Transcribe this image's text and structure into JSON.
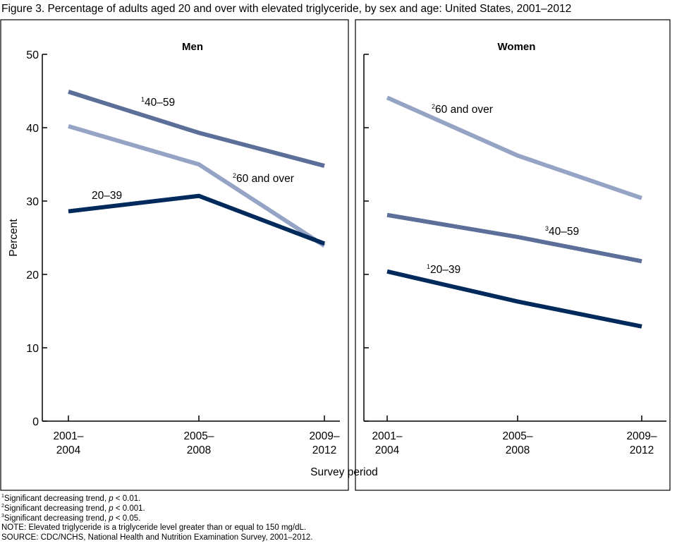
{
  "title": "Figure 3. Percentage of adults aged 20 and over with elevated triglyceride, by sex and age: United States, 2001–2012",
  "chart_data": [
    {
      "type": "line",
      "title": "Men",
      "ylabel": "Percent",
      "xlabel": "Survey period",
      "ylim": [
        0,
        50
      ],
      "yticks": [
        0,
        10,
        20,
        30,
        40,
        50
      ],
      "categories": [
        [
          "2001–",
          "2004"
        ],
        [
          "2005–",
          "2008"
        ],
        [
          "2009–",
          "2012"
        ]
      ],
      "grid": false,
      "series": [
        {
          "name": "40–59",
          "sup": "1",
          "color": "#5b6f99",
          "values": [
            44.9,
            39.3,
            34.8
          ]
        },
        {
          "name": "60 and over",
          "sup": "2",
          "color": "#95a3c5",
          "values": [
            40.2,
            35.0,
            23.9
          ]
        },
        {
          "name": "20–39",
          "sup": "",
          "color": "#002a5c",
          "values": [
            28.6,
            30.7,
            24.2
          ]
        }
      ]
    },
    {
      "type": "line",
      "title": "Women",
      "ylim": [
        0,
        50
      ],
      "categories": [
        [
          "2001–",
          "2004"
        ],
        [
          "2005–",
          "2008"
        ],
        [
          "2009–",
          "2012"
        ]
      ],
      "grid": false,
      "series": [
        {
          "name": "60 and over",
          "sup": "2",
          "color": "#95a3c5",
          "values": [
            44.1,
            36.2,
            30.4
          ]
        },
        {
          "name": "40–59",
          "sup": "3",
          "color": "#5b6f99",
          "values": [
            28.1,
            25.1,
            21.8
          ]
        },
        {
          "name": "20–39",
          "sup": "1",
          "color": "#002a5c",
          "values": [
            20.4,
            16.3,
            12.9
          ]
        }
      ]
    }
  ],
  "footnotes": [
    {
      "sup": "1",
      "text": "Significant decreasing trend, ",
      "p": "p",
      "rest": " < 0.01."
    },
    {
      "sup": "2",
      "text": "Significant decreasing trend, ",
      "p": "p",
      "rest": " < 0.001."
    },
    {
      "sup": "3",
      "text": "Significant decreasing trend, ",
      "p": "p",
      "rest": " < 0.05."
    }
  ],
  "note": "NOTE: Elevated triglyceride is a triglyceride level greater than or equal to 150 mg/dL.",
  "source": "SOURCE: CDC/NCHS, National Health and Nutrition Examination Survey, 2001–2012."
}
